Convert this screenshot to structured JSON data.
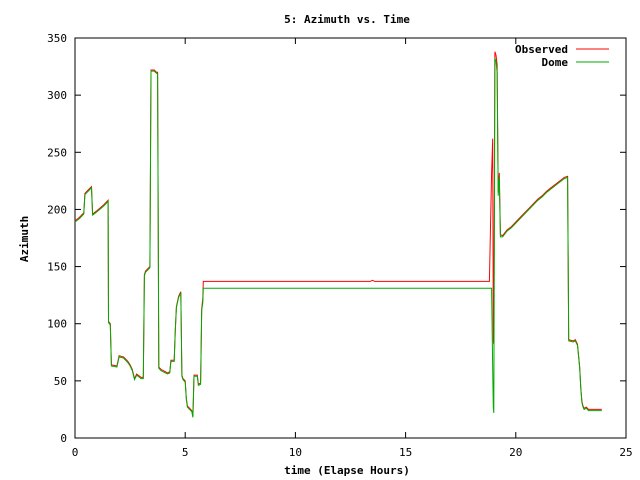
{
  "chart_data": {
    "type": "line",
    "title": "5: Azimuth vs. Time",
    "xlabel": "time (Elapse Hours)",
    "ylabel": "Azimuth",
    "xlim": [
      0,
      25
    ],
    "ylim": [
      0,
      350
    ],
    "xticks": [
      0,
      5,
      10,
      15,
      20,
      25
    ],
    "yticks": [
      0,
      50,
      100,
      150,
      200,
      250,
      300,
      350
    ],
    "grid": false,
    "legend_position": "top-right",
    "series": [
      {
        "name": "Observed",
        "color": "#ff0000",
        "points": [
          [
            0.0,
            190
          ],
          [
            0.2,
            193
          ],
          [
            0.35,
            196
          ],
          [
            0.4,
            197
          ],
          [
            0.45,
            214
          ],
          [
            0.55,
            216
          ],
          [
            0.7,
            219
          ],
          [
            0.75,
            220
          ],
          [
            0.8,
            196
          ],
          [
            1.0,
            199
          ],
          [
            1.3,
            204
          ],
          [
            1.5,
            208
          ],
          [
            1.52,
            102
          ],
          [
            1.6,
            100
          ],
          [
            1.65,
            64
          ],
          [
            1.9,
            63
          ],
          [
            2.0,
            72
          ],
          [
            2.2,
            71
          ],
          [
            2.4,
            67
          ],
          [
            2.5,
            64
          ],
          [
            2.6,
            60
          ],
          [
            2.7,
            52
          ],
          [
            2.8,
            56
          ],
          [
            3.0,
            53
          ],
          [
            3.1,
            53
          ],
          [
            3.15,
            143
          ],
          [
            3.2,
            146
          ],
          [
            3.3,
            148
          ],
          [
            3.4,
            150
          ],
          [
            3.45,
            322
          ],
          [
            3.6,
            322
          ],
          [
            3.7,
            320
          ],
          [
            3.75,
            320
          ],
          [
            3.8,
            62
          ],
          [
            3.9,
            60
          ],
          [
            4.1,
            58
          ],
          [
            4.2,
            57
          ],
          [
            4.3,
            58
          ],
          [
            4.35,
            68
          ],
          [
            4.5,
            68
          ],
          [
            4.55,
            95
          ],
          [
            4.6,
            115
          ],
          [
            4.7,
            124
          ],
          [
            4.8,
            128
          ],
          [
            4.85,
            55
          ],
          [
            4.9,
            52
          ],
          [
            5.0,
            50
          ],
          [
            5.05,
            35
          ],
          [
            5.1,
            28
          ],
          [
            5.3,
            24
          ],
          [
            5.35,
            19
          ],
          [
            5.4,
            55
          ],
          [
            5.55,
            55
          ],
          [
            5.6,
            47
          ],
          [
            5.7,
            48
          ],
          [
            5.75,
            113
          ],
          [
            5.8,
            122
          ],
          [
            5.82,
            137
          ],
          [
            13.4,
            137
          ],
          [
            13.5,
            138
          ],
          [
            13.6,
            137
          ],
          [
            18.8,
            137
          ],
          [
            18.9,
            232
          ],
          [
            18.95,
            262
          ],
          [
            18.98,
            85
          ],
          [
            19.0,
            82
          ],
          [
            19.05,
            338
          ],
          [
            19.1,
            335
          ],
          [
            19.15,
            327
          ],
          [
            19.2,
            215
          ],
          [
            19.25,
            232
          ],
          [
            19.3,
            178
          ],
          [
            19.4,
            177
          ],
          [
            19.6,
            182
          ],
          [
            19.8,
            185
          ],
          [
            20.0,
            189
          ],
          [
            20.3,
            195
          ],
          [
            20.6,
            201
          ],
          [
            21.0,
            209
          ],
          [
            21.2,
            212
          ],
          [
            21.4,
            216
          ],
          [
            21.6,
            219
          ],
          [
            21.8,
            222
          ],
          [
            22.0,
            225
          ],
          [
            22.2,
            228
          ],
          [
            22.35,
            229
          ],
          [
            22.4,
            86
          ],
          [
            22.6,
            85
          ],
          [
            22.7,
            86
          ],
          [
            22.8,
            82
          ],
          [
            22.9,
            62
          ],
          [
            22.95,
            44
          ],
          [
            23.0,
            32
          ],
          [
            23.05,
            28
          ],
          [
            23.1,
            26
          ],
          [
            23.2,
            27
          ],
          [
            23.3,
            25
          ],
          [
            23.9,
            25
          ]
        ]
      },
      {
        "name": "Dome",
        "color": "#00aa00",
        "points": [
          [
            0.0,
            189
          ],
          [
            0.2,
            192
          ],
          [
            0.35,
            195
          ],
          [
            0.4,
            196
          ],
          [
            0.45,
            213
          ],
          [
            0.55,
            215
          ],
          [
            0.7,
            218
          ],
          [
            0.75,
            219
          ],
          [
            0.8,
            195
          ],
          [
            1.0,
            198
          ],
          [
            1.3,
            203
          ],
          [
            1.5,
            207
          ],
          [
            1.52,
            101
          ],
          [
            1.6,
            99
          ],
          [
            1.65,
            63
          ],
          [
            1.9,
            62
          ],
          [
            2.0,
            71
          ],
          [
            2.2,
            70
          ],
          [
            2.4,
            66
          ],
          [
            2.5,
            63
          ],
          [
            2.6,
            59
          ],
          [
            2.7,
            51
          ],
          [
            2.8,
            55
          ],
          [
            3.0,
            52
          ],
          [
            3.1,
            52
          ],
          [
            3.15,
            142
          ],
          [
            3.2,
            145
          ],
          [
            3.3,
            147
          ],
          [
            3.4,
            149
          ],
          [
            3.45,
            321
          ],
          [
            3.6,
            321
          ],
          [
            3.7,
            319
          ],
          [
            3.75,
            319
          ],
          [
            3.8,
            61
          ],
          [
            3.9,
            59
          ],
          [
            4.1,
            57
          ],
          [
            4.2,
            56
          ],
          [
            4.3,
            57
          ],
          [
            4.35,
            67
          ],
          [
            4.5,
            67
          ],
          [
            4.55,
            94
          ],
          [
            4.6,
            114
          ],
          [
            4.7,
            123
          ],
          [
            4.8,
            127
          ],
          [
            4.85,
            54
          ],
          [
            4.9,
            51
          ],
          [
            5.0,
            49
          ],
          [
            5.05,
            34
          ],
          [
            5.1,
            27
          ],
          [
            5.3,
            23
          ],
          [
            5.35,
            18
          ],
          [
            5.4,
            54
          ],
          [
            5.55,
            54
          ],
          [
            5.6,
            46
          ],
          [
            5.7,
            47
          ],
          [
            5.75,
            112
          ],
          [
            5.8,
            118
          ],
          [
            5.82,
            131
          ],
          [
            18.8,
            131
          ],
          [
            18.9,
            131
          ],
          [
            18.95,
            60
          ],
          [
            18.98,
            27
          ],
          [
            19.0,
            22
          ],
          [
            19.05,
            332
          ],
          [
            19.1,
            330
          ],
          [
            19.15,
            320
          ],
          [
            19.2,
            212
          ],
          [
            19.25,
            228
          ],
          [
            19.3,
            176
          ],
          [
            19.4,
            176
          ],
          [
            19.6,
            181
          ],
          [
            19.8,
            184
          ],
          [
            20.0,
            188
          ],
          [
            20.3,
            194
          ],
          [
            20.6,
            200
          ],
          [
            21.0,
            208
          ],
          [
            21.2,
            211
          ],
          [
            21.4,
            215
          ],
          [
            21.6,
            218
          ],
          [
            21.8,
            221
          ],
          [
            22.0,
            224
          ],
          [
            22.2,
            227
          ],
          [
            22.35,
            228
          ],
          [
            22.4,
            85
          ],
          [
            22.6,
            84
          ],
          [
            22.7,
            85
          ],
          [
            22.8,
            81
          ],
          [
            22.9,
            61
          ],
          [
            22.95,
            43
          ],
          [
            23.0,
            31
          ],
          [
            23.05,
            27
          ],
          [
            23.1,
            25
          ],
          [
            23.2,
            26
          ],
          [
            23.3,
            24
          ],
          [
            23.9,
            24
          ]
        ]
      }
    ]
  }
}
